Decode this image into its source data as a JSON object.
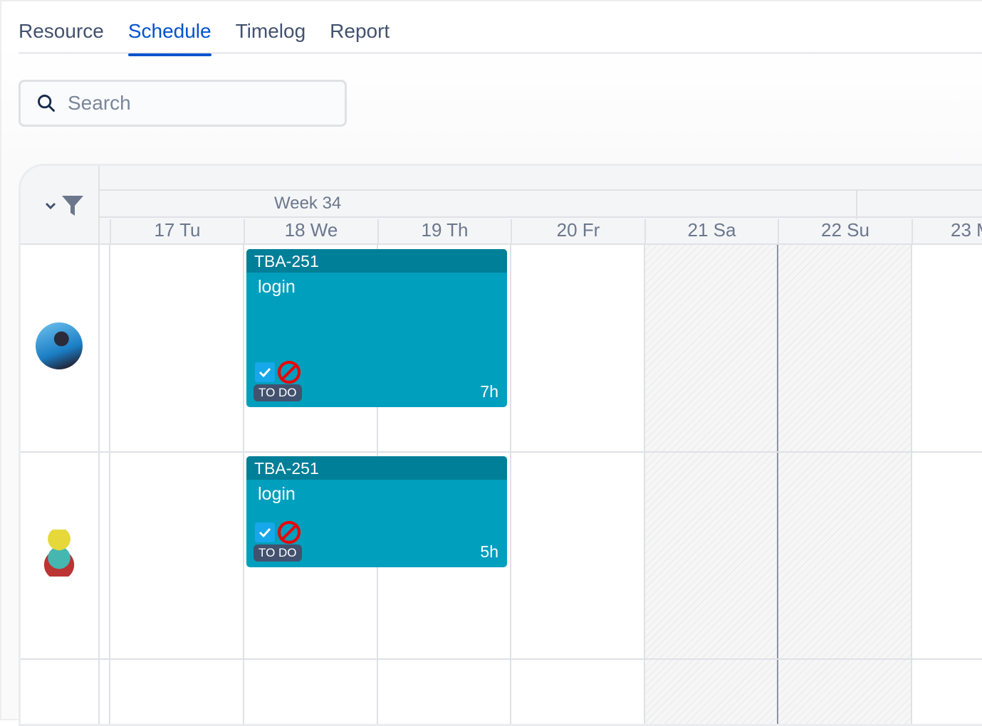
{
  "tabs": [
    {
      "label": "Resource"
    },
    {
      "label": "Schedule",
      "active": true
    },
    {
      "label": "Timelog"
    },
    {
      "label": "Report"
    }
  ],
  "search": {
    "placeholder": "Search",
    "icon": "search-icon"
  },
  "header": {
    "week": "Week 34",
    "days": [
      "17 Tu",
      "18 We",
      "19 Th",
      "20 Fr",
      "21 Sa",
      "22 Su",
      "23 M"
    ]
  },
  "rows": [
    {
      "avatar": "user-avatar-photo",
      "card": {
        "key": "TBA-251",
        "title": "login",
        "status": "TO DO",
        "hours": "7h"
      }
    },
    {
      "avatar": "user-avatar-robot",
      "card": {
        "key": "TBA-251",
        "title": "login",
        "status": "TO DO",
        "hours": "5h"
      }
    }
  ],
  "colors": {
    "accent": "#0052cc",
    "card": "#009fbd",
    "card_header": "#007f98",
    "status_badge": "#42526e"
  }
}
